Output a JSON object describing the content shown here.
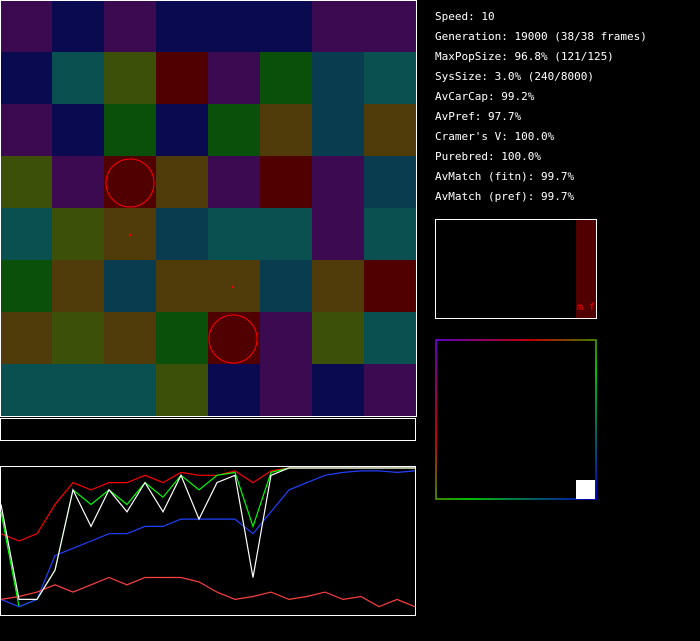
{
  "stats": [
    "Speed: 10",
    "Generation: 19000 (38/38 frames)",
    "MaxPopSize: 96.8% (121/125)",
    "SysSize: 3.0% (240/8000)",
    "AvCarCap: 99.2%",
    "AvPref: 97.7%",
    "Cramer's V: 100.0%",
    "Purebred: 100.0%",
    "AvMatch (fitn): 99.7%",
    "AvMatch (pref): 99.7%"
  ],
  "sex_chart": {
    "label": "m f"
  },
  "history": {
    "series": [
      {
        "color": "#ff0000",
        "values": [
          0.55,
          0.5,
          0.55,
          0.75,
          0.9,
          0.85,
          0.9,
          0.9,
          0.95,
          0.9,
          0.97,
          0.95,
          0.95,
          0.98,
          0.9,
          0.98,
          1,
          1,
          1,
          1,
          1,
          1,
          1,
          1
        ]
      },
      {
        "color": "#00ff00",
        "values": [
          0.7,
          0.05,
          0.1,
          0.3,
          0.85,
          0.75,
          0.85,
          0.75,
          0.9,
          0.8,
          0.95,
          0.85,
          0.95,
          0.97,
          0.6,
          0.97,
          1,
          1,
          1,
          1,
          1,
          1,
          1,
          1
        ]
      },
      {
        "color": "#2040ff",
        "values": [
          0.1,
          0.05,
          0.1,
          0.4,
          0.45,
          0.5,
          0.55,
          0.55,
          0.6,
          0.6,
          0.65,
          0.65,
          0.65,
          0.65,
          0.55,
          0.7,
          0.85,
          0.9,
          0.95,
          0.97,
          0.98,
          0.98,
          0.97,
          0.98
        ]
      },
      {
        "color": "#ff4040",
        "values": [
          0.1,
          0.12,
          0.15,
          0.2,
          0.15,
          0.2,
          0.25,
          0.2,
          0.25,
          0.25,
          0.25,
          0.22,
          0.15,
          0.1,
          0.12,
          0.15,
          0.1,
          0.12,
          0.15,
          0.1,
          0.12,
          0.05,
          0.1,
          0.05
        ]
      },
      {
        "color": "#ffffff",
        "values": [
          0.75,
          0.1,
          0.1,
          0.3,
          0.85,
          0.6,
          0.85,
          0.7,
          0.9,
          0.7,
          0.95,
          0.65,
          0.9,
          0.95,
          0.25,
          0.95,
          1,
          1,
          1,
          1,
          1,
          1,
          1,
          1
        ]
      }
    ]
  }
}
